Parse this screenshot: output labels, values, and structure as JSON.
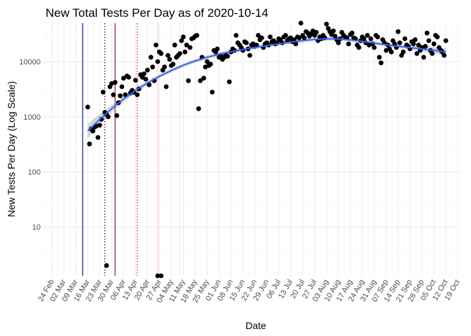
{
  "chart_data": {
    "type": "scatter",
    "title": "New Total Tests Per Day as of 2020-10-14",
    "xlabel": "Date",
    "ylabel": "New Tests Per Day (Log Scale)",
    "y_scale": "log10",
    "ylim": [
      1.3,
      50000
    ],
    "xlim": [
      "2020-02-19",
      "2020-10-21"
    ],
    "x_ticks": [
      "2020-02-24",
      "2020-03-02",
      "2020-03-09",
      "2020-03-16",
      "2020-03-23",
      "2020-03-30",
      "2020-04-06",
      "2020-04-13",
      "2020-04-20",
      "2020-04-27",
      "2020-05-04",
      "2020-05-11",
      "2020-05-18",
      "2020-05-25",
      "2020-06-01",
      "2020-06-08",
      "2020-06-15",
      "2020-06-22",
      "2020-06-29",
      "2020-07-06",
      "2020-07-13",
      "2020-07-20",
      "2020-07-27",
      "2020-08-03",
      "2020-08-10",
      "2020-08-17",
      "2020-08-24",
      "2020-08-31",
      "2020-09-07",
      "2020-09-14",
      "2020-09-21",
      "2020-09-28",
      "2020-10-05",
      "2020-10-12",
      "2020-10-19"
    ],
    "x_tick_labels": [
      "24 Feb",
      "02 Mar",
      "09 Mar",
      "16 Mar",
      "23 Mar",
      "30 Mar",
      "06 Apr",
      "13 Apr",
      "20 Apr",
      "27 Apr",
      "04 May",
      "11 May",
      "18 May",
      "25 May",
      "01 Jun",
      "08 Jun",
      "15 Jun",
      "22 Jun",
      "29 Jun",
      "06 Jul",
      "13 Jul",
      "20 Jul",
      "27 Jul",
      "03 Aug",
      "10 Aug",
      "17 Aug",
      "24 Aug",
      "31 Aug",
      "07 Sep",
      "14 Sep",
      "21 Sep",
      "28 Sep",
      "05 Oct",
      "12 Oct",
      "19 Oct"
    ],
    "y_ticks": [
      10,
      100,
      1000,
      10000
    ],
    "y_tick_labels": [
      "10",
      "100",
      "1000",
      "10000"
    ],
    "grid": true,
    "legend": "none",
    "colors": {
      "points": "#000000",
      "smooth_line": "#3366ff",
      "band": "#999999"
    },
    "vlines": [
      {
        "date": "2020-03-13",
        "color": "#000080",
        "style": "solid"
      },
      {
        "date": "2020-03-26",
        "color": "#000000",
        "style": "dotted"
      },
      {
        "date": "2020-04-01",
        "color": "#8b0000",
        "style": "solid"
      },
      {
        "date": "2020-04-14",
        "color": "#cc0000",
        "style": "dotted"
      },
      {
        "date": "2020-04-26",
        "color": "#ffc0cb",
        "style": "solid"
      },
      {
        "date": "2020-05-09",
        "color": "#d3d3d3",
        "style": "dotted"
      }
    ],
    "points": [
      [
        "2020-03-16",
        1500
      ],
      [
        "2020-03-17",
        320
      ],
      [
        "2020-03-18",
        600
      ],
      [
        "2020-03-19",
        550
      ],
      [
        "2020-03-20",
        650
      ],
      [
        "2020-03-21",
        680
      ],
      [
        "2020-03-22",
        420
      ],
      [
        "2020-03-23",
        700
      ],
      [
        "2020-03-24",
        900
      ],
      [
        "2020-03-25",
        2800
      ],
      [
        "2020-03-26",
        1200
      ],
      [
        "2020-03-27",
        1100
      ],
      [
        "2020-03-28",
        1000
      ],
      [
        "2020-03-29",
        3500
      ],
      [
        "2020-03-30",
        4000
      ],
      [
        "2020-03-31",
        2500
      ],
      [
        "2020-04-01",
        4200
      ],
      [
        "2020-04-02",
        1050
      ],
      [
        "2020-04-03",
        1800
      ],
      [
        "2020-04-04",
        2400
      ],
      [
        "2020-04-05",
        3500
      ],
      [
        "2020-04-06",
        5000
      ],
      [
        "2020-04-07",
        2500
      ],
      [
        "2020-04-08",
        5500
      ],
      [
        "2020-04-09",
        5200
      ],
      [
        "2020-04-10",
        2700
      ],
      [
        "2020-04-11",
        3000
      ],
      [
        "2020-04-12",
        2800
      ],
      [
        "2020-04-13",
        4600
      ],
      [
        "2020-04-14",
        2500
      ],
      [
        "2020-04-15",
        3200
      ],
      [
        "2020-04-16",
        5800
      ],
      [
        "2020-04-17",
        5200
      ],
      [
        "2020-04-18",
        6000
      ],
      [
        "2020-04-19",
        4800
      ],
      [
        "2020-04-20",
        7000
      ],
      [
        "2020-04-21",
        3800
      ],
      [
        "2020-04-22",
        12000
      ],
      [
        "2020-04-23",
        8000
      ],
      [
        "2020-04-24",
        4500
      ],
      [
        "2020-04-25",
        20000
      ],
      [
        "2020-04-26",
        10000
      ],
      [
        "2020-04-27",
        15000
      ],
      [
        "2020-04-28",
        14000
      ],
      [
        "2020-04-29",
        7000
      ],
      [
        "2020-04-30",
        8000
      ],
      [
        "2020-05-01",
        3500
      ],
      [
        "2020-05-02",
        13000
      ],
      [
        "2020-05-03",
        11000
      ],
      [
        "2020-05-04",
        8500
      ],
      [
        "2020-05-05",
        9000
      ],
      [
        "2020-05-06",
        20000
      ],
      [
        "2020-05-07",
        12000
      ],
      [
        "2020-05-08",
        13000
      ],
      [
        "2020-05-09",
        14000
      ],
      [
        "2020-05-10",
        24000
      ],
      [
        "2020-05-11",
        28000
      ],
      [
        "2020-05-12",
        15000
      ],
      [
        "2020-05-13",
        20000
      ],
      [
        "2020-05-14",
        4500
      ],
      [
        "2020-05-15",
        18000
      ],
      [
        "2020-05-16",
        26000
      ],
      [
        "2020-05-17",
        27000
      ],
      [
        "2020-05-18",
        29000
      ],
      [
        "2020-05-19",
        30000
      ],
      [
        "2020-05-20",
        1400
      ],
      [
        "2020-05-21",
        4500
      ],
      [
        "2020-05-22",
        12000
      ],
      [
        "2020-05-23",
        5000
      ],
      [
        "2020-05-24",
        8000
      ],
      [
        "2020-05-25",
        10000
      ],
      [
        "2020-05-26",
        8500
      ],
      [
        "2020-05-27",
        9000
      ],
      [
        "2020-05-28",
        2800
      ],
      [
        "2020-05-29",
        16000
      ],
      [
        "2020-05-30",
        15000
      ],
      [
        "2020-05-31",
        17000
      ],
      [
        "2020-06-01",
        12000
      ],
      [
        "2020-06-02",
        13000
      ],
      [
        "2020-06-03",
        11000
      ],
      [
        "2020-06-04",
        12000
      ],
      [
        "2020-06-05",
        13000
      ],
      [
        "2020-06-06",
        12500
      ],
      [
        "2020-06-07",
        4300
      ],
      [
        "2020-06-08",
        15000
      ],
      [
        "2020-06-09",
        17000
      ],
      [
        "2020-06-10",
        16000
      ],
      [
        "2020-06-11",
        30000
      ],
      [
        "2020-06-12",
        22000
      ],
      [
        "2020-06-13",
        20000
      ],
      [
        "2020-06-14",
        18000
      ],
      [
        "2020-06-15",
        16000
      ],
      [
        "2020-06-16",
        23000
      ],
      [
        "2020-06-17",
        22000
      ],
      [
        "2020-06-18",
        17000
      ],
      [
        "2020-06-19",
        13000
      ],
      [
        "2020-06-20",
        20000
      ],
      [
        "2020-06-21",
        21000
      ],
      [
        "2020-06-22",
        19000
      ],
      [
        "2020-06-23",
        20000
      ],
      [
        "2020-06-24",
        30000
      ],
      [
        "2020-06-25",
        25000
      ],
      [
        "2020-06-26",
        27000
      ],
      [
        "2020-06-27",
        18000
      ],
      [
        "2020-06-28",
        21000
      ],
      [
        "2020-06-29",
        22000
      ],
      [
        "2020-06-30",
        20000
      ],
      [
        "2020-07-01",
        28000
      ],
      [
        "2020-07-02",
        23000
      ],
      [
        "2020-07-03",
        24000
      ],
      [
        "2020-07-04",
        21000
      ],
      [
        "2020-07-05",
        22000
      ],
      [
        "2020-07-06",
        26000
      ],
      [
        "2020-07-07",
        25000
      ],
      [
        "2020-07-08",
        22000
      ],
      [
        "2020-07-09",
        28000
      ],
      [
        "2020-07-10",
        30000
      ],
      [
        "2020-07-11",
        24000
      ],
      [
        "2020-07-12",
        26000
      ],
      [
        "2020-07-13",
        27000
      ],
      [
        "2020-07-14",
        23000
      ],
      [
        "2020-07-15",
        25000
      ],
      [
        "2020-07-16",
        21000
      ],
      [
        "2020-07-17",
        28000
      ],
      [
        "2020-07-18",
        27000
      ],
      [
        "2020-07-19",
        50000
      ],
      [
        "2020-07-20",
        30000
      ],
      [
        "2020-07-21",
        27000
      ],
      [
        "2020-07-22",
        35000
      ],
      [
        "2020-07-23",
        33000
      ],
      [
        "2020-07-24",
        29000
      ],
      [
        "2020-07-25",
        32000
      ],
      [
        "2020-07-26",
        36000
      ],
      [
        "2020-07-27",
        30000
      ],
      [
        "2020-07-28",
        34000
      ],
      [
        "2020-07-29",
        24000
      ],
      [
        "2020-07-30",
        28000
      ],
      [
        "2020-07-31",
        26000
      ],
      [
        "2020-08-01",
        30000
      ],
      [
        "2020-08-02",
        27000
      ],
      [
        "2020-08-03",
        48000
      ],
      [
        "2020-08-04",
        40000
      ],
      [
        "2020-08-05",
        35000
      ],
      [
        "2020-08-06",
        31000
      ],
      [
        "2020-08-07",
        36000
      ],
      [
        "2020-08-08",
        29000
      ],
      [
        "2020-08-09",
        25000
      ],
      [
        "2020-08-10",
        22000
      ],
      [
        "2020-08-11",
        26000
      ],
      [
        "2020-08-12",
        34000
      ],
      [
        "2020-08-13",
        30000
      ],
      [
        "2020-08-14",
        28000
      ],
      [
        "2020-08-15",
        27000
      ],
      [
        "2020-08-16",
        21000
      ],
      [
        "2020-08-17",
        31000
      ],
      [
        "2020-08-18",
        33000
      ],
      [
        "2020-08-19",
        27000
      ],
      [
        "2020-08-20",
        26000
      ],
      [
        "2020-08-21",
        20000
      ],
      [
        "2020-08-22",
        18000
      ],
      [
        "2020-08-23",
        24000
      ],
      [
        "2020-08-24",
        28000
      ],
      [
        "2020-08-25",
        26000
      ],
      [
        "2020-08-26",
        22000
      ],
      [
        "2020-08-27",
        30000
      ],
      [
        "2020-08-28",
        20000
      ],
      [
        "2020-08-29",
        26000
      ],
      [
        "2020-08-30",
        21000
      ],
      [
        "2020-08-31",
        18000
      ],
      [
        "2020-09-01",
        30000
      ],
      [
        "2020-09-02",
        28000
      ],
      [
        "2020-09-03",
        12000
      ],
      [
        "2020-09-04",
        9500
      ],
      [
        "2020-09-05",
        25000
      ],
      [
        "2020-09-06",
        22000
      ],
      [
        "2020-09-07",
        16000
      ],
      [
        "2020-09-08",
        20000
      ],
      [
        "2020-09-09",
        17000
      ],
      [
        "2020-09-10",
        15000
      ],
      [
        "2020-09-11",
        24000
      ],
      [
        "2020-09-12",
        21000
      ],
      [
        "2020-09-13",
        18000
      ],
      [
        "2020-09-14",
        35000
      ],
      [
        "2020-09-15",
        22000
      ],
      [
        "2020-09-16",
        13000
      ],
      [
        "2020-09-17",
        15000
      ],
      [
        "2020-09-18",
        26000
      ],
      [
        "2020-09-19",
        20000
      ],
      [
        "2020-09-20",
        19000
      ],
      [
        "2020-09-21",
        17000
      ],
      [
        "2020-09-22",
        23000
      ],
      [
        "2020-09-23",
        21000
      ],
      [
        "2020-09-24",
        25000
      ],
      [
        "2020-09-25",
        14000
      ],
      [
        "2020-09-26",
        20000
      ],
      [
        "2020-09-27",
        16000
      ],
      [
        "2020-09-28",
        18000
      ],
      [
        "2020-09-29",
        12000
      ],
      [
        "2020-09-30",
        19000
      ],
      [
        "2020-10-01",
        33000
      ],
      [
        "2020-10-02",
        24000
      ],
      [
        "2020-10-03",
        16000
      ],
      [
        "2020-10-04",
        14000
      ],
      [
        "2020-10-05",
        21000
      ],
      [
        "2020-10-06",
        30000
      ],
      [
        "2020-10-07",
        28000
      ],
      [
        "2020-10-08",
        18000
      ],
      [
        "2020-10-09",
        16000
      ],
      [
        "2020-10-10",
        15000
      ],
      [
        "2020-10-11",
        13000
      ],
      [
        "2020-10-12",
        24000
      ]
    ],
    "outliers": [
      [
        "2020-03-27",
        2
      ],
      [
        "2020-04-26",
        1.3
      ],
      [
        "2020-04-28",
        1.3
      ]
    ],
    "smooth": [
      [
        "2020-03-16",
        550
      ],
      [
        "2020-03-23",
        900
      ],
      [
        "2020-03-30",
        1400
      ],
      [
        "2020-04-06",
        2100
      ],
      [
        "2020-04-13",
        3000
      ],
      [
        "2020-04-20",
        4100
      ],
      [
        "2020-04-27",
        5400
      ],
      [
        "2020-05-04",
        6900
      ],
      [
        "2020-05-11",
        8600
      ],
      [
        "2020-05-18",
        10300
      ],
      [
        "2020-05-25",
        12000
      ],
      [
        "2020-06-01",
        13600
      ],
      [
        "2020-06-08",
        15100
      ],
      [
        "2020-06-15",
        16600
      ],
      [
        "2020-06-22",
        18000
      ],
      [
        "2020-06-29",
        19500
      ],
      [
        "2020-07-06",
        21000
      ],
      [
        "2020-07-13",
        22500
      ],
      [
        "2020-07-20",
        24000
      ],
      [
        "2020-07-27",
        25300
      ],
      [
        "2020-08-03",
        26000
      ],
      [
        "2020-08-10",
        25800
      ],
      [
        "2020-08-17",
        24800
      ],
      [
        "2020-08-24",
        23300
      ],
      [
        "2020-08-31",
        21700
      ],
      [
        "2020-09-07",
        20200
      ],
      [
        "2020-09-14",
        19000
      ],
      [
        "2020-09-21",
        18000
      ],
      [
        "2020-09-28",
        17000
      ],
      [
        "2020-10-05",
        16000
      ],
      [
        "2020-10-12",
        15000
      ]
    ],
    "smooth_se_ratio": [
      [
        "2020-03-16",
        1.35
      ],
      [
        "2020-03-30",
        1.15
      ],
      [
        "2020-04-27",
        1.08
      ],
      [
        "2020-06-01",
        1.08
      ],
      [
        "2020-07-13",
        1.07
      ],
      [
        "2020-08-17",
        1.07
      ],
      [
        "2020-09-21",
        1.08
      ],
      [
        "2020-10-12",
        1.18
      ]
    ]
  }
}
